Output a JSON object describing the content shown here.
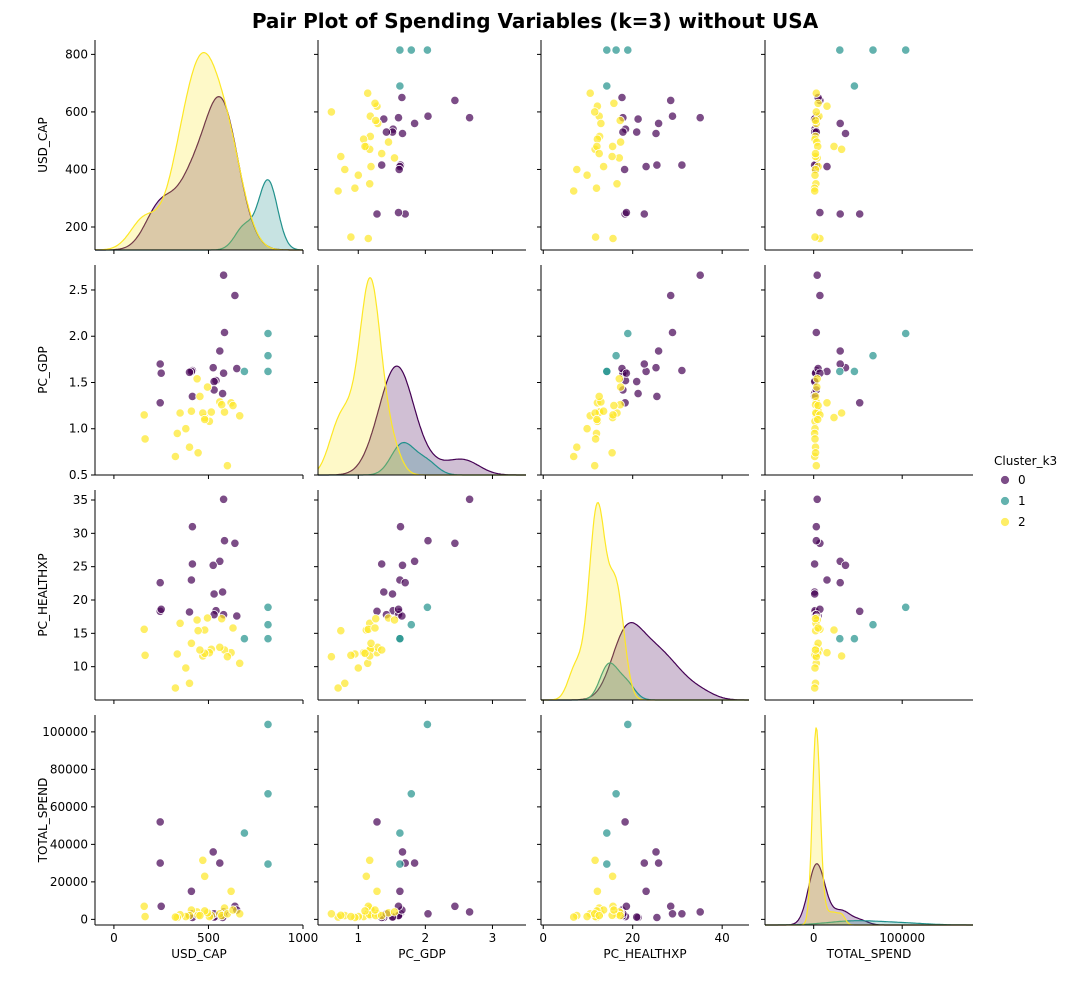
{
  "title": "Pair Plot of Spending Variables (k=3) without USA",
  "legend": {
    "title": "Cluster_k3",
    "items": [
      {
        "label": "0",
        "color": "#440154"
      },
      {
        "label": "1",
        "color": "#21918c"
      },
      {
        "label": "2",
        "color": "#fde725"
      }
    ]
  },
  "chart_data": {
    "type": "scatter",
    "title": "Pair Plot of Spending Variables (k=3) without USA",
    "variables": [
      "USD_CAP",
      "PC_GDP",
      "PC_HEALTHXP",
      "TOTAL_SPEND"
    ],
    "axes": {
      "USD_CAP": {
        "range": [
          -100,
          1000
        ],
        "ticks": [
          0,
          500,
          1000
        ],
        "ticks_y": [
          200,
          400,
          600,
          800
        ],
        "yrange": [
          120,
          850
        ]
      },
      "PC_GDP": {
        "range": [
          0.4,
          3.5
        ],
        "ticks": [
          1,
          2,
          3
        ],
        "ticks_y": [
          0.5,
          1.0,
          1.5,
          2.0,
          2.5
        ],
        "ytick_labels": [
          "0.5",
          "1.0",
          "1.5",
          "2.0",
          "2.5"
        ],
        "yrange": [
          0.5,
          2.77
        ]
      },
      "PC_HEALTHXP": {
        "range": [
          -0.5,
          46
        ],
        "ticks": [
          0,
          20,
          40
        ],
        "ticks_y": [
          10,
          15,
          20,
          25,
          30,
          35
        ],
        "yrange": [
          5,
          36.5
        ]
      },
      "TOTAL_SPEND": {
        "range": [
          -55000,
          180000
        ],
        "ticks": [
          0,
          100000
        ],
        "ticks_y": [
          0,
          20000,
          40000,
          60000,
          80000,
          100000
        ],
        "yrange": [
          -3000,
          109000
        ]
      }
    },
    "series": [
      {
        "name": "0",
        "color": "#440154",
        "points": [
          [
            580,
            2.66,
            35.1,
            4000
          ],
          [
            640,
            2.44,
            28.5,
            7000
          ],
          [
            585,
            2.04,
            28.9,
            3000
          ],
          [
            560,
            1.84,
            25.8,
            30000
          ],
          [
            525,
            1.66,
            25.2,
            36000
          ],
          [
            415,
            1.63,
            31.0,
            3000
          ],
          [
            410,
            1.62,
            23.0,
            15000
          ],
          [
            245,
            1.7,
            22.6,
            30000
          ],
          [
            400,
            1.61,
            18.2,
            2000
          ],
          [
            245,
            1.28,
            18.3,
            52000
          ],
          [
            540,
            1.52,
            18.4,
            1500
          ],
          [
            580,
            1.6,
            17.8,
            2000
          ],
          [
            650,
            1.65,
            17.6,
            5000
          ],
          [
            575,
            1.38,
            21.2,
            1000
          ],
          [
            530,
            1.51,
            20.9,
            1200
          ],
          [
            415,
            1.35,
            25.4,
            1000
          ],
          [
            250,
            1.6,
            18.6,
            7000
          ],
          [
            530,
            1.42,
            17.8,
            3000
          ]
        ]
      },
      {
        "name": "1",
        "color": "#21918c",
        "points": [
          [
            815,
            2.03,
            18.9,
            104000
          ],
          [
            815,
            1.79,
            16.3,
            67000
          ],
          [
            690,
            1.62,
            14.2,
            46000
          ],
          [
            815,
            1.62,
            14.2,
            29500
          ]
        ]
      },
      {
        "name": "2",
        "color": "#fde725",
        "points": [
          [
            665,
            1.14,
            10.5,
            3000
          ],
          [
            620,
            1.28,
            12.1,
            15000
          ],
          [
            585,
            1.18,
            12.5,
            6000
          ],
          [
            560,
            1.29,
            12.9,
            3000
          ],
          [
            515,
            1.18,
            12.6,
            2000
          ],
          [
            505,
            1.08,
            12.1,
            1500
          ],
          [
            495,
            1.45,
            17.3,
            3500
          ],
          [
            480,
            1.12,
            15.5,
            23000
          ],
          [
            470,
            1.17,
            11.6,
            31500
          ],
          [
            440,
            1.54,
            17.0,
            4000
          ],
          [
            410,
            1.19,
            13.5,
            5000
          ],
          [
            400,
            0.8,
            7.5,
            2000
          ],
          [
            380,
            1.0,
            9.8,
            1500
          ],
          [
            350,
            1.17,
            16.5,
            2500
          ],
          [
            335,
            0.95,
            11.9,
            1000
          ],
          [
            325,
            0.7,
            6.8,
            1200
          ],
          [
            160,
            1.15,
            15.6,
            7000
          ],
          [
            165,
            0.89,
            11.7,
            1500
          ],
          [
            570,
            1.26,
            17.2,
            2000
          ],
          [
            445,
            0.74,
            15.4,
            2200
          ],
          [
            480,
            1.1,
            12.0,
            4500
          ],
          [
            600,
            0.6,
            11.5,
            3000
          ],
          [
            630,
            1.25,
            15.8,
            5000
          ],
          [
            455,
            1.35,
            12.5,
            2000
          ]
        ]
      }
    ],
    "diagonal": "kde",
    "grid": false,
    "legend_position": "right"
  }
}
